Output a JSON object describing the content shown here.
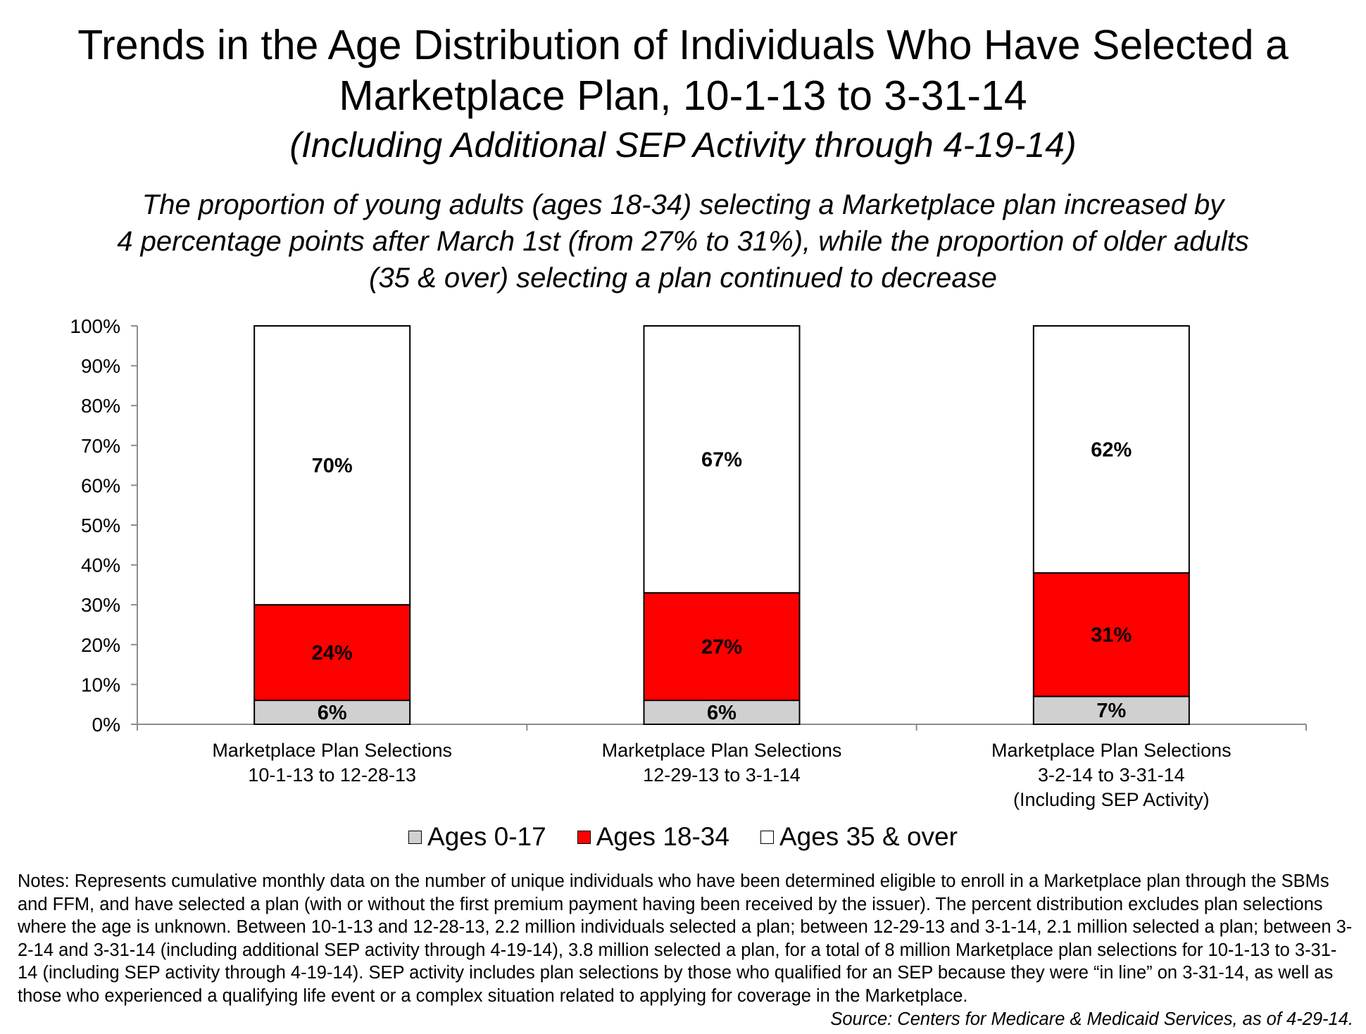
{
  "title": {
    "line1": "Trends in the Age Distribution of Individuals Who Have Selected a",
    "line2": "Marketplace Plan, 10-1-13 to 3-31-14",
    "line3": "(Including Additional SEP Activity through 4-19-14)"
  },
  "subtitle": {
    "line1": "The proportion of young adults (ages 18-34) selecting a Marketplace plan increased by",
    "line2": "4 percentage points after March 1st (from 27% to 31%), while the proportion of older adults",
    "line3": "(35 & over) selecting a plan continued to decrease"
  },
  "chart_data": {
    "type": "bar",
    "stacked": true,
    "categories": [
      [
        "Marketplace Plan Selections",
        "10-1-13 to 12-28-13"
      ],
      [
        "Marketplace Plan Selections",
        "12-29-13 to 3-1-14"
      ],
      [
        "Marketplace Plan Selections",
        "3-2-14 to 3-31-14",
        "(Including SEP Activity)"
      ]
    ],
    "series": [
      {
        "name": "Ages 0-17",
        "color": "#d0d0d0",
        "values": [
          6,
          6,
          7
        ],
        "labels": [
          "6%",
          "6%",
          "7%"
        ]
      },
      {
        "name": "Ages 18-34",
        "color": "#ff0000",
        "values": [
          24,
          27,
          31
        ],
        "labels": [
          "24%",
          "27%",
          "31%"
        ]
      },
      {
        "name": "Ages 35 & over",
        "color": "#ffffff",
        "values": [
          70,
          67,
          62
        ],
        "labels": [
          "70%",
          "67%",
          "62%"
        ]
      }
    ],
    "ylim": [
      0,
      100
    ],
    "yticks": [
      "0%",
      "10%",
      "20%",
      "30%",
      "40%",
      "50%",
      "60%",
      "70%",
      "80%",
      "90%",
      "100%"
    ],
    "legend_position": "bottom",
    "grid": false
  },
  "notes": "Notes:  Represents cumulative monthly data on the number of unique individuals who have been determined eligible to enroll in a Marketplace plan through the SBMs and FFM, and have selected a plan (with or without the first premium payment having been received by the issuer).  The percent distribution excludes plan selections where the age is unknown.  Between 10-1-13 and 12-28-13, 2.2 million individuals selected a plan; between 12-29-13 and 3-1-14, 2.1 million selected a plan; between 3-2-14 and 3-31-14 (including additional SEP activity through 4-19-14), 3.8 million selected a plan, for a total of 8 million Marketplace plan selections for 10-1-13 to 3-31-14 (including SEP activity through 4-19-14). SEP activity includes plan selections by those who qualified for an SEP because they were “in line” on 3-31-14, as well as those who experienced a qualifying life event or a complex situation related to applying for coverage in the Marketplace.",
  "source": "Source:  Centers for Medicare & Medicaid Services, as of 4-29-14."
}
